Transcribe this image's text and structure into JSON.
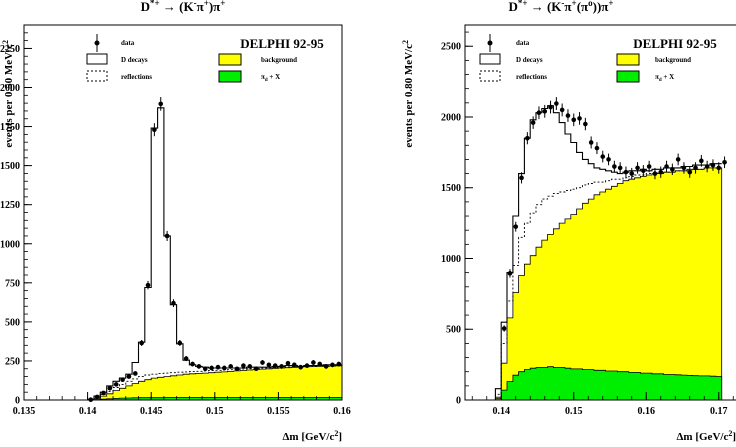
{
  "colors": {
    "background": "#ffff00",
    "pi_d": "#00ee00",
    "data": "#000000",
    "line": "#000000"
  },
  "chart_data": [
    {
      "type": "histogram",
      "title": "D*+ → (K-π+)π+",
      "title_parts": {
        "main": "D",
        "sup_main": "*+",
        "arrow": " → (K",
        "sup_k": "-",
        "pi": "π",
        "sup_pi1": "+",
        "close": ")π",
        "sup_pi2": "+"
      },
      "experiment": "DELPHI 92-95",
      "xlabel": "Δm [GeV/c²]",
      "xlabel_parts": {
        "main": "Δm [GeV/c",
        "sup": "2",
        "close": "]"
      },
      "ylabel": "events per 0.50 MeV/c²",
      "ylabel_parts": {
        "main": "events per 0.50 MeV/c",
        "sup": "2"
      },
      "xlim": [
        0.135,
        0.16
      ],
      "ylim": [
        0,
        2400
      ],
      "xticks": [
        "0.135",
        "0.14",
        "0.145",
        "0.15",
        "0.155",
        "0.16"
      ],
      "yticks": [
        "0",
        "250",
        "500",
        "750",
        "1000",
        "1250",
        "1500",
        "1750",
        "2000",
        "2250"
      ],
      "legend": {
        "data": "data",
        "d_decays": "D decays",
        "reflections": "reflections",
        "background": "background",
        "pi_d": "π_d + X",
        "pi_d_main": "π",
        "pi_d_sub": "d",
        "pi_d_rest": " + X"
      },
      "bin_width": 0.0005,
      "bin_start": 0.1395,
      "d_decays": [
        0,
        5,
        25,
        50,
        90,
        120,
        140,
        165,
        240,
        370,
        720,
        1740,
        1870,
        1050,
        610,
        360,
        255,
        225,
        215,
        210,
        205,
        205,
        205,
        205,
        205,
        205,
        210,
        210,
        210,
        210,
        215,
        215,
        220,
        220,
        215,
        220,
        220,
        220,
        225,
        225,
        225
      ],
      "reflections": [
        0,
        3,
        15,
        35,
        55,
        80,
        100,
        120,
        135,
        150,
        160,
        165,
        170,
        172,
        175,
        178,
        180,
        182,
        184,
        186,
        188,
        190,
        192,
        194,
        196,
        198,
        200,
        202,
        204,
        206,
        208,
        210,
        212,
        214,
        216,
        218,
        218,
        218,
        220,
        220,
        220
      ],
      "background": [
        0,
        2,
        10,
        25,
        40,
        60,
        75,
        90,
        105,
        120,
        130,
        140,
        145,
        150,
        155,
        160,
        165,
        168,
        170,
        172,
        175,
        178,
        180,
        183,
        186,
        189,
        192,
        195,
        198,
        200,
        203,
        205,
        207,
        209,
        211,
        213,
        214,
        215,
        216,
        217,
        218
      ],
      "pi_d": [
        0,
        1,
        3,
        5,
        8,
        10,
        12,
        13,
        14,
        15,
        15,
        15,
        15,
        16,
        16,
        16,
        16,
        16,
        16,
        16,
        16,
        16,
        16,
        16,
        16,
        16,
        16,
        16,
        16,
        16,
        16,
        16,
        16,
        16,
        16,
        16,
        16,
        16,
        16,
        16,
        16
      ],
      "data_points": [
        [
          0.14025,
          2
        ],
        [
          0.14075,
          20
        ],
        [
          0.14125,
          45
        ],
        [
          0.14175,
          75
        ],
        [
          0.14225,
          100
        ],
        [
          0.14275,
          130
        ],
        [
          0.14325,
          150
        ],
        [
          0.14375,
          170
        ],
        [
          0.14425,
          365
        ],
        [
          0.14475,
          735
        ],
        [
          0.14525,
          1730
        ],
        [
          0.14575,
          1895
        ],
        [
          0.14625,
          1050
        ],
        [
          0.14675,
          620
        ],
        [
          0.14725,
          365
        ],
        [
          0.14775,
          265
        ],
        [
          0.14825,
          230
        ],
        [
          0.14875,
          215
        ],
        [
          0.14925,
          200
        ],
        [
          0.14975,
          205
        ],
        [
          0.15025,
          210
        ],
        [
          0.15075,
          205
        ],
        [
          0.15125,
          215
        ],
        [
          0.15175,
          200
        ],
        [
          0.15225,
          220
        ],
        [
          0.15275,
          215
        ],
        [
          0.15325,
          200
        ],
        [
          0.15375,
          240
        ],
        [
          0.15425,
          225
        ],
        [
          0.15475,
          220
        ],
        [
          0.15525,
          215
        ],
        [
          0.15575,
          235
        ],
        [
          0.15625,
          225
        ],
        [
          0.15675,
          210
        ],
        [
          0.15725,
          220
        ],
        [
          0.15775,
          240
        ],
        [
          0.15825,
          230
        ],
        [
          0.15875,
          215
        ],
        [
          0.15925,
          225
        ],
        [
          0.15975,
          230
        ]
      ]
    },
    {
      "type": "histogram",
      "title": "D*+ → (K-π+(π0))π+",
      "title_parts": {
        "main": "D",
        "sup_main": "*+",
        "arrow": " → (K",
        "sup_k": "-",
        "pi": "π",
        "sup_pi1": "+",
        "open2": "(π",
        "sup_pi0": "o",
        "close": "))π",
        "sup_pi2": "+"
      },
      "experiment": "DELPHI 92-95",
      "xlabel": "Δm [GeV/c²]",
      "xlabel_parts": {
        "main": "Δm [GeV/c",
        "sup": "2",
        "close": "]"
      },
      "ylabel": "events per 0.80 MeV/c²",
      "ylabel_parts": {
        "main": "events per 0.80 MeV/c",
        "sup": "2"
      },
      "xlim": [
        0.135,
        0.175
      ],
      "ylim": [
        0,
        2650
      ],
      "xticks": [
        "0.14",
        "0.15",
        "0.16",
        "0.17"
      ],
      "yticks": [
        "0",
        "500",
        "1000",
        "1500",
        "2000",
        "2500"
      ],
      "legend": {
        "data": "data",
        "d_decays": "D decays",
        "reflections": "reflections",
        "background": "background",
        "pi_d": "π_d + X",
        "pi_d_main": "π",
        "pi_d_sub": "d",
        "pi_d_rest": " + X"
      },
      "bin_width": 0.0008,
      "bin_start": 0.1392,
      "d_decays": [
        80,
        550,
        900,
        1300,
        1600,
        1850,
        1980,
        2030,
        2060,
        2080,
        2030,
        1960,
        1880,
        1820,
        1750,
        1700,
        1670,
        1640,
        1630,
        1620,
        1610,
        1600,
        1610,
        1620,
        1620,
        1630,
        1620,
        1630,
        1630,
        1640,
        1640,
        1640,
        1650,
        1650,
        1660,
        1660,
        1660,
        1670,
        1670
      ],
      "reflections": [
        40,
        400,
        700,
        950,
        1150,
        1250,
        1320,
        1380,
        1420,
        1440,
        1460,
        1470,
        1480,
        1490,
        1500,
        1520,
        1530,
        1540,
        1540,
        1550,
        1560,
        1560,
        1570,
        1580,
        1590,
        1590,
        1600,
        1600,
        1610,
        1610,
        1610,
        1620,
        1620,
        1620,
        1630,
        1630,
        1640,
        1640,
        1640
      ],
      "background": [
        20,
        260,
        580,
        760,
        880,
        960,
        1020,
        1080,
        1130,
        1170,
        1210,
        1250,
        1280,
        1310,
        1350,
        1390,
        1420,
        1450,
        1470,
        1490,
        1510,
        1530,
        1550,
        1560,
        1570,
        1580,
        1590,
        1600,
        1600,
        1610,
        1610,
        1620,
        1620,
        1630,
        1630,
        1630,
        1640,
        1640,
        1640
      ],
      "pi_d": [
        10,
        70,
        130,
        175,
        200,
        215,
        225,
        230,
        230,
        235,
        230,
        230,
        225,
        220,
        220,
        215,
        215,
        210,
        210,
        205,
        205,
        200,
        200,
        195,
        195,
        190,
        190,
        185,
        185,
        180,
        180,
        178,
        176,
        174,
        172,
        170,
        170,
        168,
        166
      ],
      "data_points": [
        [
          0.1404,
          505
        ],
        [
          0.1412,
          895
        ],
        [
          0.142,
          1225
        ],
        [
          0.1428,
          1570
        ],
        [
          0.1436,
          1850
        ],
        [
          0.1444,
          1960
        ],
        [
          0.1452,
          2030
        ],
        [
          0.146,
          2040
        ],
        [
          0.1468,
          2070
        ],
        [
          0.1476,
          2095
        ],
        [
          0.1484,
          2050
        ],
        [
          0.1492,
          2010
        ],
        [
          0.15,
          1980
        ],
        [
          0.1508,
          1990
        ],
        [
          0.1516,
          1950
        ],
        [
          0.1524,
          1820
        ],
        [
          0.1532,
          1780
        ],
        [
          0.154,
          1720
        ],
        [
          0.1548,
          1700
        ],
        [
          0.1556,
          1650
        ],
        [
          0.1564,
          1640
        ],
        [
          0.1572,
          1610
        ],
        [
          0.158,
          1600
        ],
        [
          0.1588,
          1640
        ],
        [
          0.1596,
          1620
        ],
        [
          0.1604,
          1650
        ],
        [
          0.1612,
          1600
        ],
        [
          0.162,
          1610
        ],
        [
          0.1628,
          1650
        ],
        [
          0.1636,
          1630
        ],
        [
          0.1644,
          1700
        ],
        [
          0.1652,
          1640
        ],
        [
          0.166,
          1610
        ],
        [
          0.1668,
          1640
        ],
        [
          0.1676,
          1690
        ],
        [
          0.1684,
          1650
        ],
        [
          0.1692,
          1660
        ],
        [
          0.17,
          1640
        ],
        [
          0.1708,
          1680
        ]
      ]
    }
  ]
}
